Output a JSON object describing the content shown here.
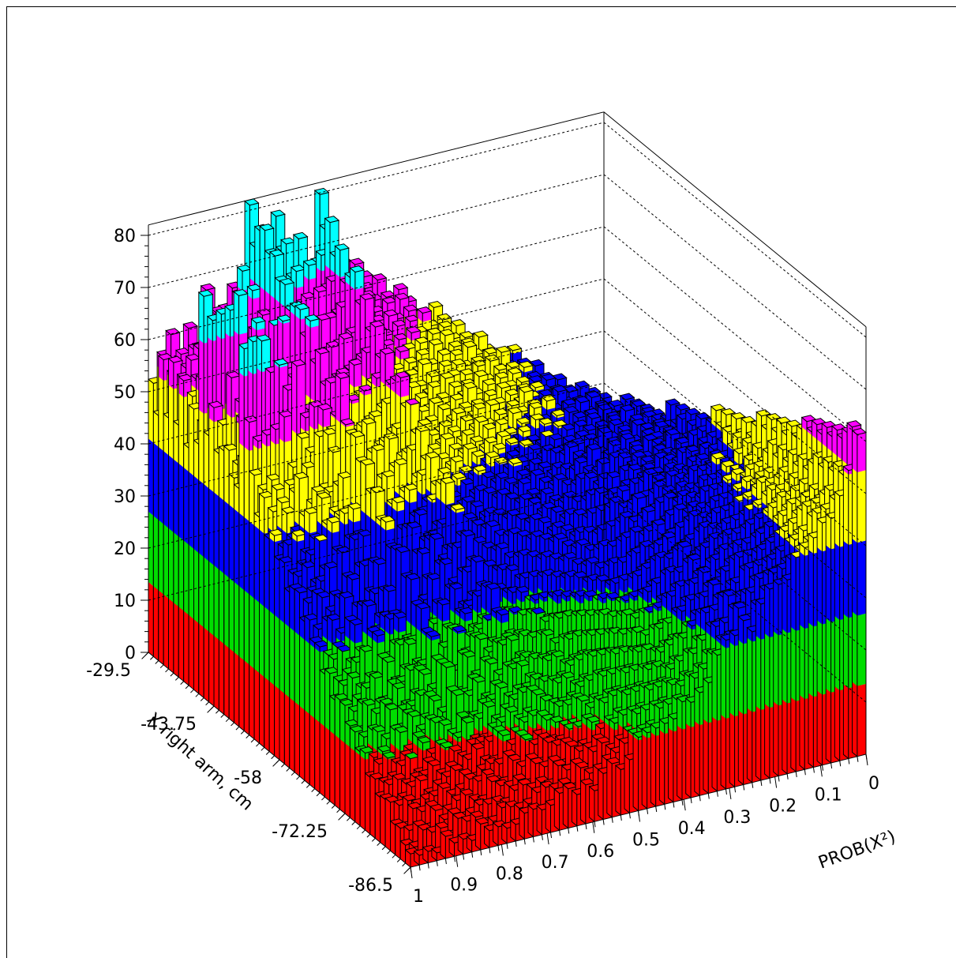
{
  "chart_data": {
    "type": "lego3d",
    "title": "",
    "xlabel": "PROB(X²)",
    "ylabel": "X right arm, cm",
    "zlabel": "",
    "x_ticks": [
      "1",
      "0.9",
      "0.8",
      "0.7",
      "0.6",
      "0.5",
      "0.4",
      "0.3",
      "0.2",
      "0.1",
      "0"
    ],
    "y_ticks": [
      "-29.5",
      "-43.75",
      "-58",
      "-72.25",
      "-86.5"
    ],
    "z_ticks": [
      "0",
      "10",
      "20",
      "30",
      "40",
      "50",
      "60",
      "70",
      "80"
    ],
    "xlim": [
      0,
      1
    ],
    "ylim": [
      -86.5,
      -29.5
    ],
    "zlim": [
      0,
      82
    ],
    "grid": true,
    "color_levels": [
      {
        "color": "#ff0000",
        "from": 0,
        "to": 13.5
      },
      {
        "color": "#00dd00",
        "from": 13.5,
        "to": 27
      },
      {
        "color": "#0000ff",
        "from": 27,
        "to": 41
      },
      {
        "color": "#ffff00",
        "from": 41,
        "to": 54.5
      },
      {
        "color": "#ff00ff",
        "from": 54.5,
        "to": 68
      },
      {
        "color": "#00ffff",
        "from": 68,
        "to": 82
      }
    ],
    "front_row_along_x": {
      "description": "bin heights along x (from x=1 to x=0) at y = -86.5 edge",
      "values": [
        0,
        0,
        1,
        1,
        2,
        1,
        2,
        2,
        3,
        2,
        3,
        3,
        4,
        4,
        5,
        5,
        6,
        6,
        7,
        6,
        8,
        7,
        8,
        10,
        9,
        11,
        13,
        14,
        15,
        16,
        17,
        18,
        18,
        20,
        22,
        25,
        28,
        29,
        32,
        30,
        33,
        36,
        37,
        38,
        40,
        42,
        44,
        47,
        48,
        50,
        55,
        62
      ]
    },
    "left_row_along_y": {
      "description": "bin heights along y (from -29.5 to -86.5) at x = 1 edge",
      "values": [
        56,
        47,
        55,
        49,
        57,
        50,
        56,
        48,
        53,
        51,
        77,
        48,
        58,
        47,
        52,
        50,
        49,
        45,
        76,
        60,
        48,
        44,
        46,
        42,
        41,
        40,
        38,
        36,
        35,
        33,
        31,
        30,
        29,
        27,
        25,
        24,
        22,
        21,
        19,
        18,
        16,
        15,
        14,
        12,
        11,
        10,
        9,
        8,
        6,
        5,
        4,
        2
      ]
    },
    "back_row_along_x": {
      "description": "bin heights along x (from x=1 to x=0) at y = -29.5 edge",
      "values": [
        63,
        61,
        66,
        62,
        69,
        58,
        70,
        60,
        68,
        73,
        62,
        83,
        60,
        64,
        75,
        63,
        72,
        65,
        70,
        78,
        62,
        66,
        64,
        62,
        61,
        60,
        58,
        57,
        56,
        55,
        52,
        51,
        50,
        49,
        47,
        46,
        45,
        43,
        42,
        40,
        39,
        38,
        36,
        35,
        33,
        32,
        31,
        30,
        28,
        27,
        26,
        25
      ]
    }
  }
}
